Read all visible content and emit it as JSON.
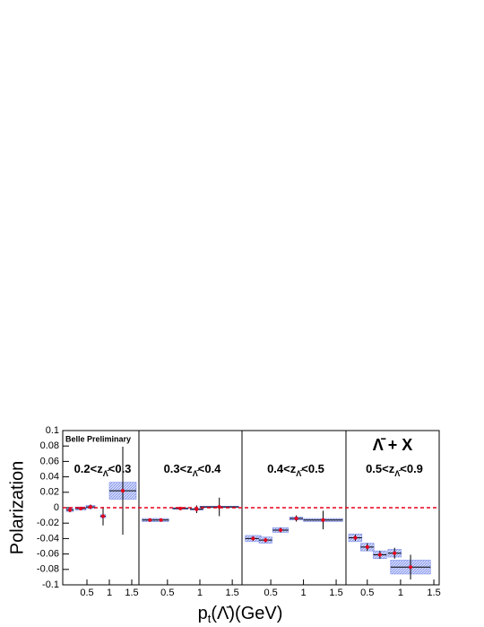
{
  "chart_data": {
    "type": "errorbar",
    "y_label": "Polarization",
    "x_label_parts": [
      "p",
      "t",
      "(Λ̄)(GeV)"
    ],
    "preliminary": "Belle Preliminary",
    "reaction": "Λ̄ + X",
    "ylim": [
      -0.1,
      0.1
    ],
    "yticks": [
      -0.1,
      -0.08,
      -0.06,
      -0.04,
      -0.02,
      0,
      0.02,
      0.04,
      0.06,
      0.08,
      0.1
    ],
    "reference_line": 0,
    "point_color": "#e8001c",
    "sys_color": "#7083e6",
    "panels": [
      {
        "label_parts": [
          "0.2<z",
          "Λ̄",
          "<0.3"
        ],
        "xlim": [
          -0.04,
          1.66
        ],
        "xticks": [
          0.5,
          1,
          1.5
        ],
        "x": [
          0.12,
          0.36,
          0.58,
          0.86,
          1.3
        ],
        "x_errors": [
          0.08,
          0.12,
          0.1,
          0.06,
          0.3
        ],
        "values": [
          -0.003,
          -0.001,
          0.001,
          -0.011,
          0.022
        ],
        "errors": [
          0.003,
          0.002,
          0.003,
          0.012,
          0.057
        ],
        "sys_errors": [
          0.002,
          0.002,
          0.002,
          0.002,
          0.011
        ]
      },
      {
        "label_parts": [
          "0.3<z",
          "Λ̄",
          "<0.4"
        ],
        "xlim": [
          0.06,
          1.65
        ],
        "xticks": [
          0.5,
          1,
          1.5
        ],
        "x": [
          0.23,
          0.4,
          0.7,
          0.95,
          1.3
        ],
        "x_errors": [
          0.12,
          0.12,
          0.12,
          0.1,
          0.3
        ],
        "values": [
          -0.016,
          -0.016,
          -0.001,
          -0.002,
          0.001
        ],
        "errors": [
          0.002,
          0.002,
          0.002,
          0.005,
          0.012
        ],
        "sys_errors": [
          0.002,
          0.002,
          0.001,
          0.001,
          0.001
        ]
      },
      {
        "label_parts": [
          "0.4<z",
          "Λ̄",
          "<0.5"
        ],
        "xlim": [
          0.06,
          1.65
        ],
        "xticks": [
          0.5,
          1,
          1.5
        ],
        "x": [
          0.23,
          0.42,
          0.65,
          0.89,
          1.3
        ],
        "x_errors": [
          0.12,
          0.1,
          0.12,
          0.1,
          0.3
        ],
        "values": [
          -0.04,
          -0.042,
          -0.029,
          -0.014,
          -0.016
        ],
        "errors": [
          0.003,
          0.003,
          0.003,
          0.004,
          0.012
        ],
        "sys_errors": [
          0.004,
          0.004,
          0.003,
          0.002,
          0.002
        ]
      },
      {
        "label_parts": [
          "0.5<z",
          "Λ̄",
          "<0.9"
        ],
        "xlim": [
          0.18,
          1.58
        ],
        "xticks": [
          0.5,
          1,
          1.5
        ],
        "x": [
          0.32,
          0.5,
          0.69,
          0.91,
          1.15
        ],
        "x_errors": [
          0.1,
          0.1,
          0.1,
          0.1,
          0.3
        ],
        "values": [
          -0.039,
          -0.051,
          -0.061,
          -0.059,
          -0.077
        ],
        "errors": [
          0.004,
          0.005,
          0.005,
          0.007,
          0.016
        ],
        "sys_errors": [
          0.005,
          0.005,
          0.005,
          0.005,
          0.009
        ]
      }
    ]
  }
}
